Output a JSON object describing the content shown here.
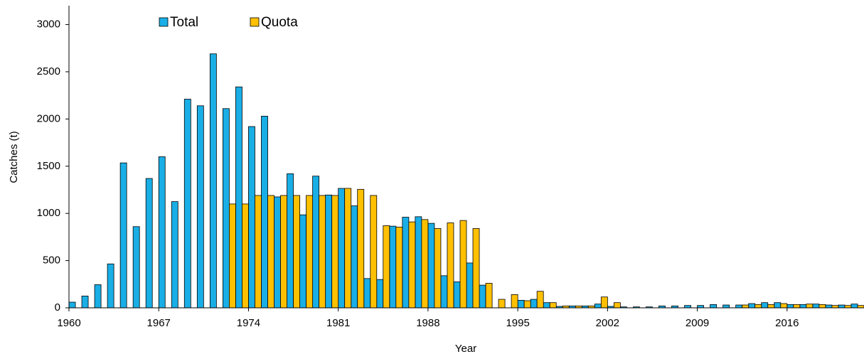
{
  "chart_data": {
    "type": "bar",
    "x_label": "Year",
    "y_label": "Catches (t)",
    "x": [
      1960,
      1961,
      1962,
      1963,
      1964,
      1965,
      1966,
      1967,
      1968,
      1969,
      1970,
      1971,
      1972,
      1973,
      1974,
      1975,
      1976,
      1977,
      1978,
      1979,
      1980,
      1981,
      1982,
      1983,
      1984,
      1985,
      1986,
      1987,
      1988,
      1989,
      1990,
      1991,
      1992,
      1993,
      1994,
      1995,
      1996,
      1997,
      1998,
      1999,
      2000,
      2001,
      2002,
      2003,
      2004,
      2005,
      2006,
      2007,
      2008,
      2009,
      2010,
      2011,
      2012,
      2013,
      2014,
      2015,
      2016,
      2017,
      2018,
      2019,
      2020,
      2021
    ],
    "series": [
      {
        "name": "Total",
        "color": "#19aee6",
        "values": [
          60,
          125,
          245,
          465,
          1535,
          860,
          1370,
          1600,
          1125,
          2210,
          2140,
          2690,
          2110,
          2340,
          1920,
          2030,
          1175,
          1420,
          985,
          1395,
          1195,
          1265,
          1080,
          310,
          300,
          865,
          960,
          965,
          895,
          340,
          275,
          475,
          240,
          null,
          null,
          80,
          90,
          55,
          15,
          20,
          20,
          40,
          15,
          10,
          10,
          10,
          20,
          20,
          25,
          25,
          35,
          30,
          30,
          45,
          55,
          55,
          35,
          35,
          40,
          30,
          30,
          40
        ]
      },
      {
        "name": "Quota",
        "color": "#ffc000",
        "values": [
          null,
          null,
          null,
          null,
          null,
          null,
          null,
          null,
          null,
          null,
          null,
          null,
          1100,
          1100,
          1190,
          1190,
          1190,
          1190,
          1190,
          1190,
          1190,
          1265,
          1255,
          1190,
          870,
          855,
          910,
          935,
          840,
          900,
          925,
          840,
          260,
          90,
          140,
          75,
          175,
          55,
          20,
          20,
          20,
          115,
          55,
          null,
          null,
          null,
          null,
          null,
          null,
          null,
          null,
          null,
          30,
          35,
          35,
          45,
          35,
          40,
          35,
          25,
          25,
          25
        ]
      }
    ],
    "xlim": [
      1960,
      2022
    ],
    "xticks": [
      1960,
      1967,
      1974,
      1981,
      1988,
      1995,
      2002,
      2009,
      2016
    ],
    "ylim": [
      0,
      3200
    ],
    "yticks": [
      0,
      500,
      1000,
      1500,
      2000,
      2500,
      3000
    ],
    "legend": "top"
  }
}
